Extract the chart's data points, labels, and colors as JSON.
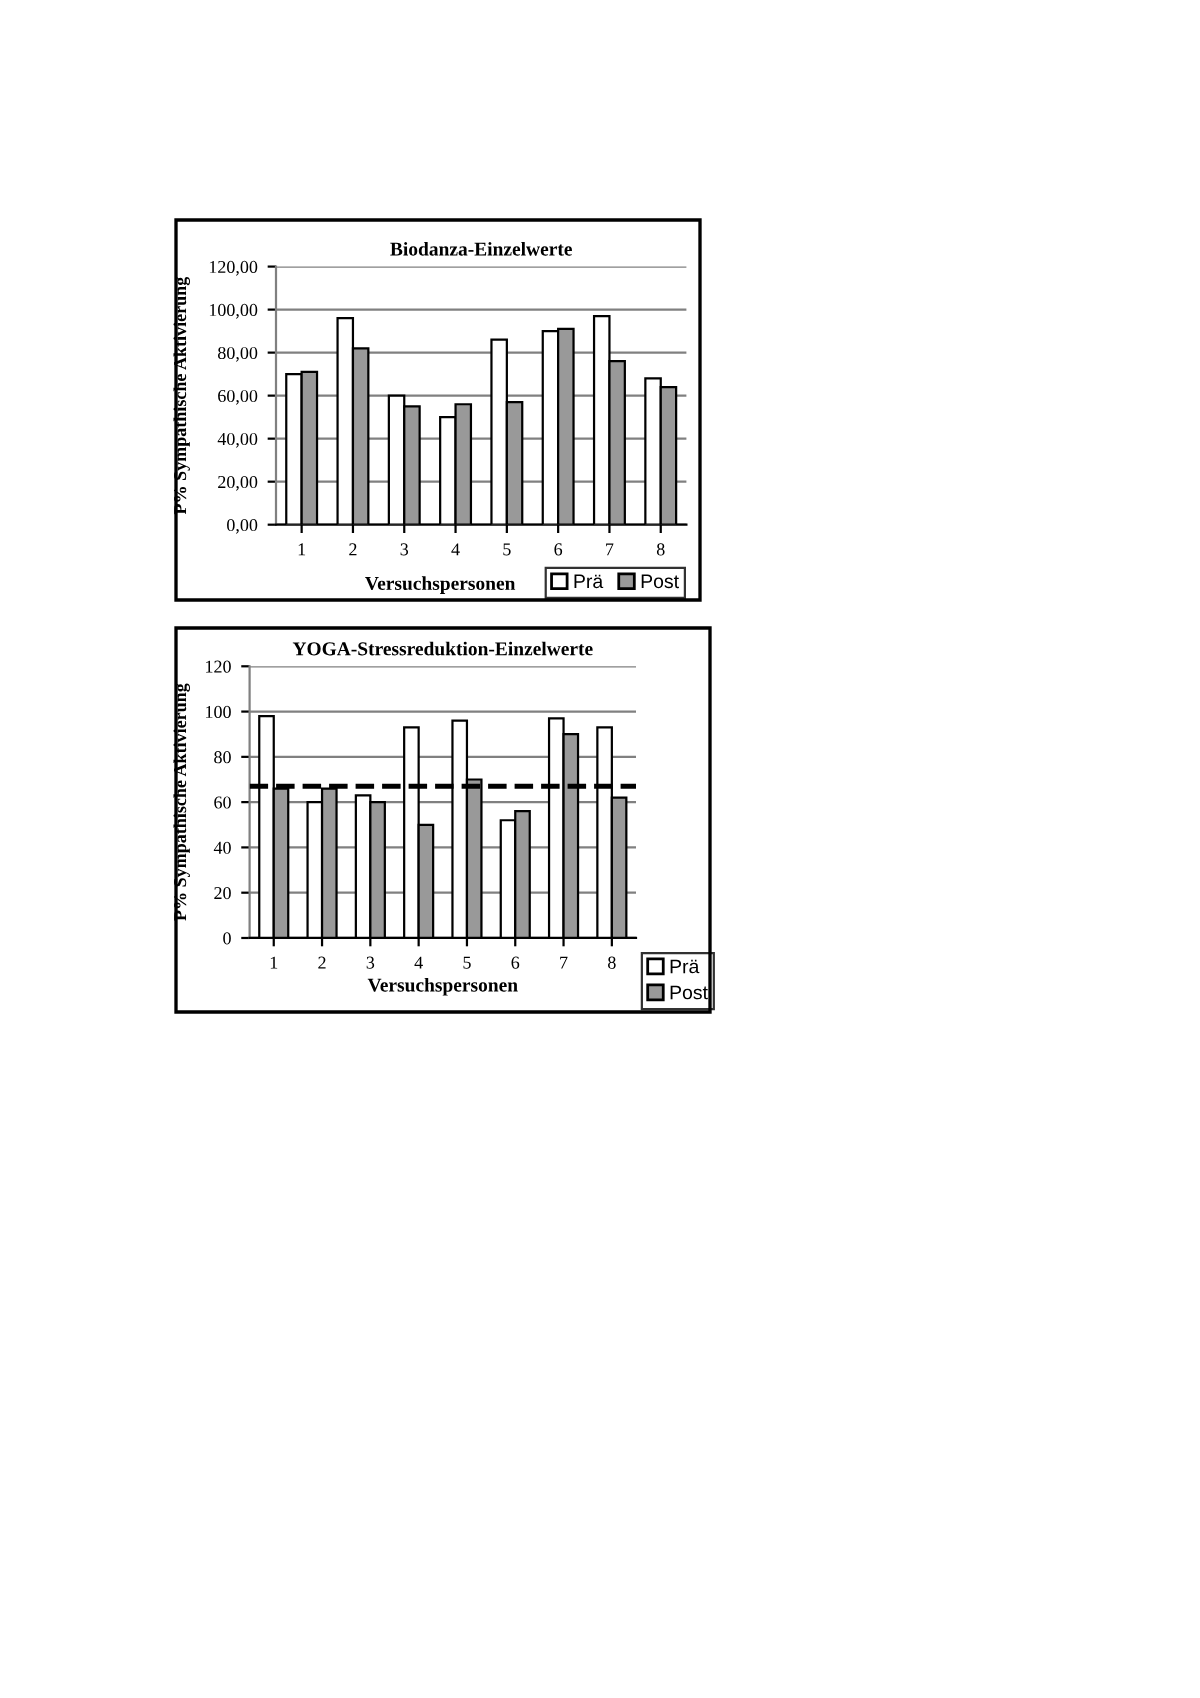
{
  "chart_data": [
    {
      "type": "bar",
      "title": "Biodanza-Einzelwerte",
      "xlabel": "Versuchspersonen",
      "ylabel": "P% Sympathische Aktivierung",
      "categories": [
        "1",
        "2",
        "3",
        "4",
        "5",
        "6",
        "7",
        "8"
      ],
      "series": [
        {
          "name": "Prä",
          "color": "#ffffff",
          "values": [
            70,
            96,
            60,
            50,
            86,
            90,
            97,
            68
          ]
        },
        {
          "name": "Post",
          "color": "#999999",
          "values": [
            71,
            82,
            55,
            56,
            57,
            91,
            76,
            64
          ]
        }
      ],
      "ylim": [
        0,
        120
      ],
      "yticks": [
        {
          "value": 0,
          "label": "0,00"
        },
        {
          "value": 20,
          "label": "20,00"
        },
        {
          "value": 40,
          "label": "40,00"
        },
        {
          "value": 60,
          "label": "60,00"
        },
        {
          "value": 80,
          "label": "80,00"
        },
        {
          "value": 100,
          "label": "100,00"
        },
        {
          "value": 120,
          "label": "120,00"
        }
      ],
      "grid": "y",
      "legend": "bottom right"
    },
    {
      "type": "bar",
      "title": "YOGA-Stressreduktion-Einzelwerte",
      "xlabel": "Versuchspersonen",
      "ylabel": "P% Sympathische Aktivierung",
      "categories": [
        "1",
        "2",
        "3",
        "4",
        "5",
        "6",
        "7",
        "8"
      ],
      "series": [
        {
          "name": "Prä",
          "color": "#ffffff",
          "values": [
            98,
            60,
            63,
            93,
            96,
            52,
            97,
            93
          ]
        },
        {
          "name": "Post",
          "color": "#999999",
          "values": [
            66,
            66,
            60,
            50,
            70,
            56,
            90,
            62
          ]
        }
      ],
      "ylim": [
        0,
        120
      ],
      "yticks": [
        0,
        20,
        40,
        60,
        80,
        100,
        120
      ],
      "ref_lines": [
        {
          "axis": "y",
          "value": 67,
          "color": "#000000",
          "line_style": "dashed"
        }
      ],
      "grid": "y",
      "legend": "right"
    }
  ]
}
